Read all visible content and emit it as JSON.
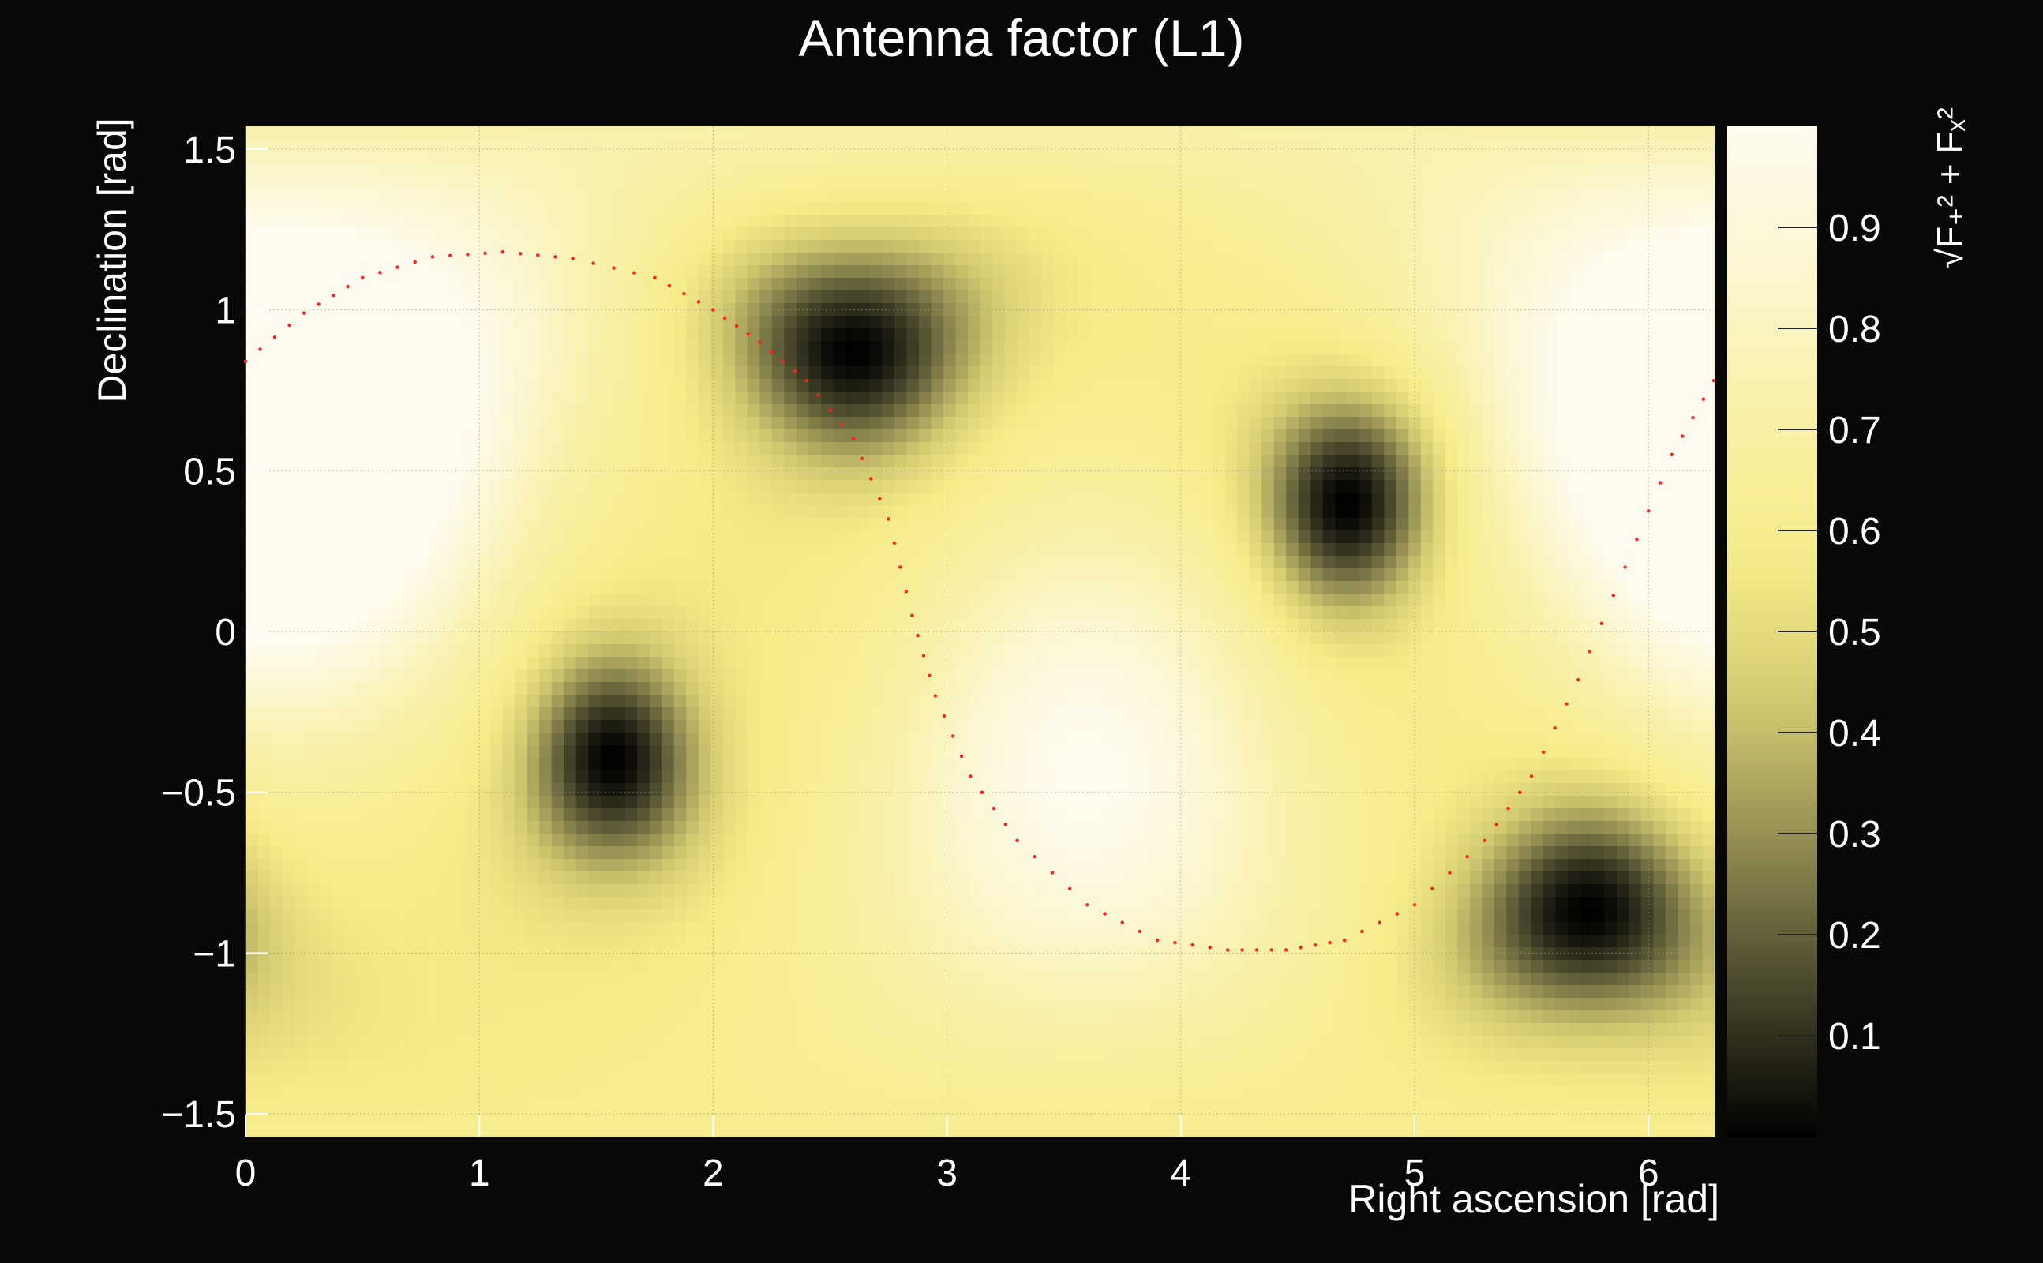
{
  "chart_data": {
    "type": "heatmap",
    "title": "Antenna factor (L1)",
    "xlabel": "Right ascension [rad]",
    "ylabel": "Declination [rad]",
    "zlabel": "√F₊² + Fₓ²",
    "xlim": [
      0,
      6.283
    ],
    "ylim": [
      -1.5708,
      1.5708
    ],
    "zlim": [
      0,
      1.0
    ],
    "x_ticks": [
      0,
      1,
      2,
      3,
      4,
      5,
      6
    ],
    "x_tick_labels": [
      "0",
      "1",
      "2",
      "3",
      "4",
      "5",
      "6"
    ],
    "y_ticks": [
      -1.5,
      -1,
      -0.5,
      0,
      0.5,
      1,
      1.5
    ],
    "y_tick_labels": [
      "−1.5",
      "−1",
      "−0.5",
      "0",
      "0.5",
      "1",
      "1.5"
    ],
    "z_ticks": [
      0.1,
      0.2,
      0.3,
      0.4,
      0.5,
      0.6,
      0.7,
      0.8,
      0.9
    ],
    "z_tick_labels": [
      "0.1",
      "0.2",
      "0.3",
      "0.4",
      "0.5",
      "0.6",
      "0.7",
      "0.8",
      "0.9"
    ],
    "grid": true,
    "colormap": [
      "#000000",
      "#46442a",
      "#8f8a50",
      "#d2ca70",
      "#f6ec8a",
      "#f8f0a6",
      "#fbf6cf",
      "#fffbf0"
    ],
    "minima": [
      {
        "ra": 1.57,
        "dec": -0.4,
        "value": 0.0
      },
      {
        "ra": 2.6,
        "dec": 0.87,
        "value": 0.0
      },
      {
        "ra": 4.71,
        "dec": 0.4,
        "value": 0.0
      },
      {
        "ra": 5.74,
        "dec": -0.87,
        "value": 0.0
      }
    ],
    "maxima": [
      {
        "ra": 0.3,
        "dec": 0.6,
        "value": 1.0
      },
      {
        "ra": 3.6,
        "dec": -0.45,
        "value": 1.0
      },
      {
        "ra": 6.28,
        "dec": 0.6,
        "value": 1.0
      }
    ],
    "overlay_curve": {
      "color": "#ff2020",
      "style": "dotted",
      "points": [
        [
          0.0,
          0.84
        ],
        [
          0.25,
          0.99
        ],
        [
          0.5,
          1.1
        ],
        [
          0.8,
          1.165
        ],
        [
          1.1,
          1.18
        ],
        [
          1.4,
          1.16
        ],
        [
          1.75,
          1.1
        ],
        [
          2.0,
          1.0
        ],
        [
          2.2,
          0.9
        ],
        [
          2.4,
          0.78
        ],
        [
          2.6,
          0.6
        ],
        [
          2.75,
          0.35
        ],
        [
          2.85,
          0.05
        ],
        [
          2.95,
          -0.2
        ],
        [
          3.1,
          -0.45
        ],
        [
          3.3,
          -0.65
        ],
        [
          3.6,
          -0.85
        ],
        [
          3.9,
          -0.96
        ],
        [
          4.2,
          -0.99
        ],
        [
          4.45,
          -0.99
        ],
        [
          4.7,
          -0.96
        ],
        [
          5.0,
          -0.85
        ],
        [
          5.3,
          -0.65
        ],
        [
          5.5,
          -0.45
        ],
        [
          5.7,
          -0.15
        ],
        [
          5.9,
          0.2
        ],
        [
          6.1,
          0.55
        ],
        [
          6.28,
          0.78
        ]
      ]
    }
  }
}
